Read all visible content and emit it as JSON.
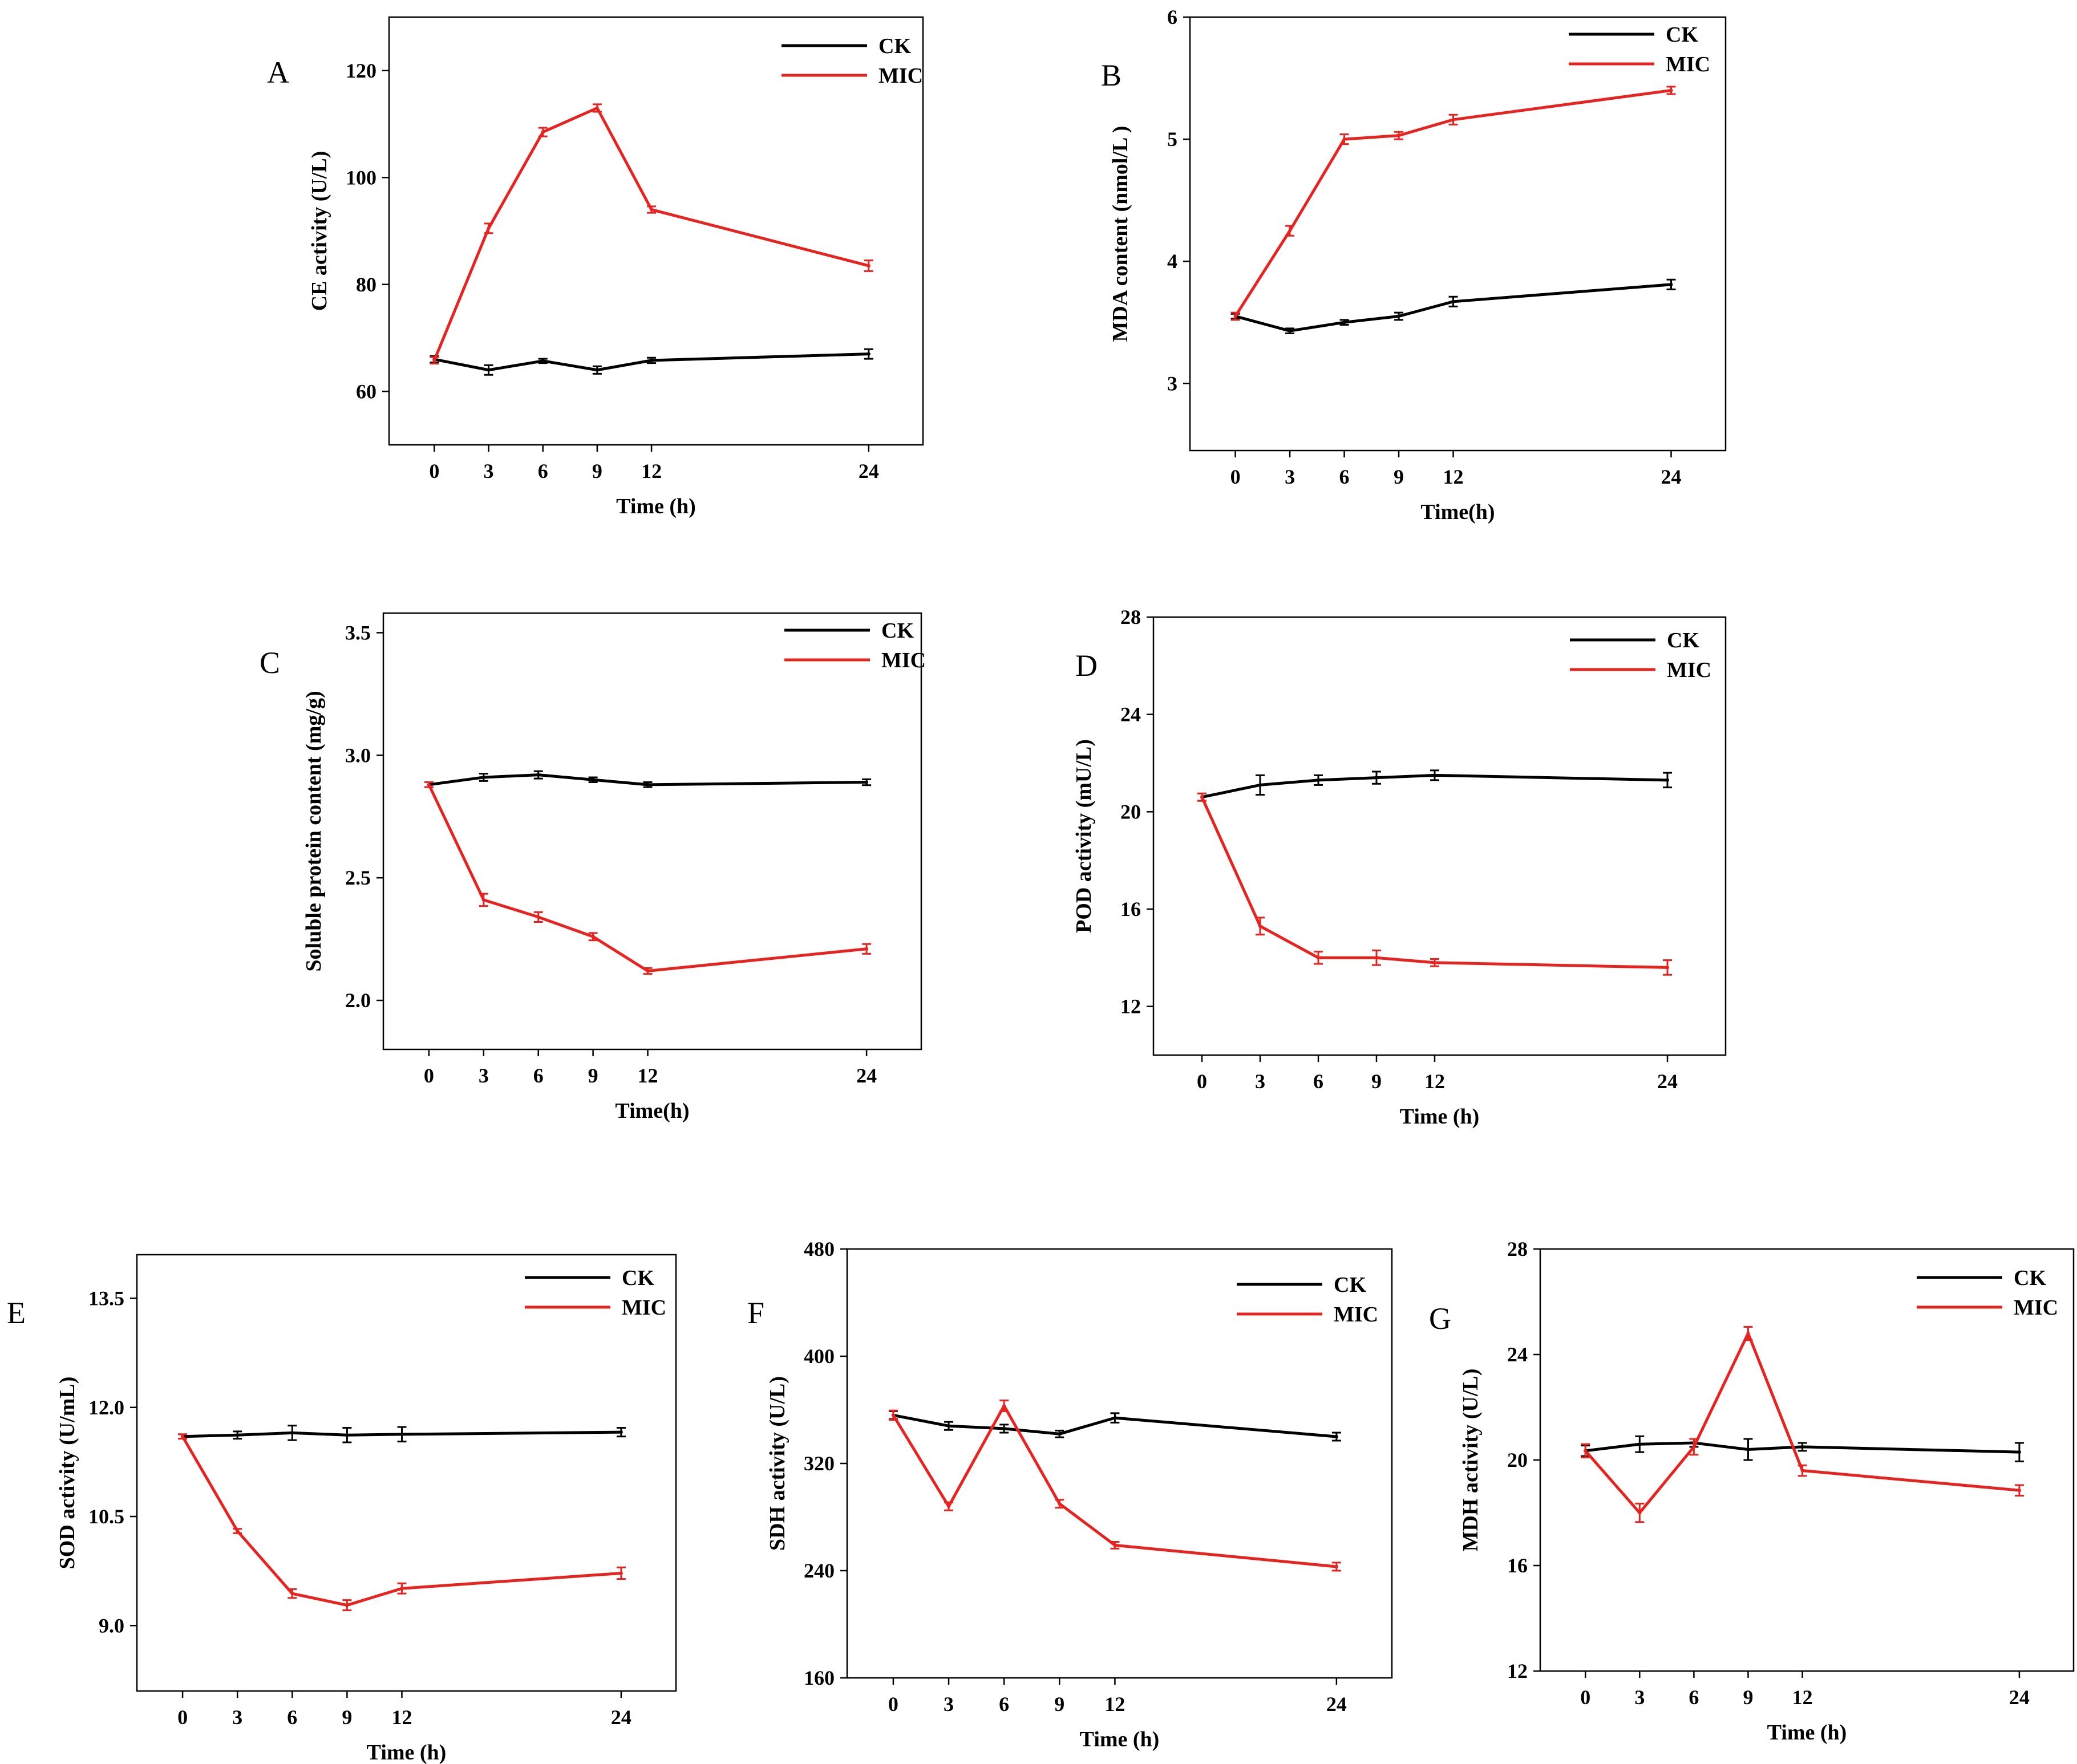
{
  "colors": {
    "CK": "#000000",
    "MIC": "#e8231f"
  },
  "chart_data": [
    {
      "panel": "A",
      "type": "line",
      "xlabel": "Time (h)",
      "ylabel": "CE activity (U/L)",
      "x": [
        0,
        3,
        6,
        9,
        12,
        24
      ],
      "xlim": [
        -2.5,
        27
      ],
      "ylim": [
        50,
        130
      ],
      "yticks": [
        60,
        80,
        100,
        120
      ],
      "series": [
        {
          "name": "CK",
          "values": [
            66,
            64,
            65.7,
            64,
            65.8,
            67
          ],
          "err": [
            0.6,
            0.9,
            0.4,
            0.7,
            0.5,
            0.9
          ]
        },
        {
          "name": "MIC",
          "values": [
            65.8,
            90.5,
            108.5,
            113,
            94,
            83.5
          ],
          "err": [
            0.6,
            0.9,
            0.8,
            0.7,
            0.6,
            1.0
          ]
        }
      ]
    },
    {
      "panel": "B",
      "type": "line",
      "xlabel": "Time(h)",
      "ylabel": "MDA content (nmol/L )",
      "x": [
        0,
        3,
        6,
        9,
        12,
        24
      ],
      "xlim": [
        -2.5,
        27
      ],
      "ylim": [
        2.45,
        6
      ],
      "yticks": [
        3,
        4,
        5,
        6
      ],
      "series": [
        {
          "name": "CK",
          "values": [
            3.55,
            3.43,
            3.5,
            3.55,
            3.67,
            3.81
          ],
          "err": [
            0.02,
            0.02,
            0.02,
            0.03,
            0.04,
            0.04
          ]
        },
        {
          "name": "MIC",
          "values": [
            3.55,
            4.25,
            5.0,
            5.03,
            5.16,
            5.4
          ],
          "err": [
            0.03,
            0.04,
            0.04,
            0.03,
            0.04,
            0.03
          ]
        }
      ]
    },
    {
      "panel": "C",
      "type": "line",
      "xlabel": "Time(h)",
      "ylabel": "Soluble protein content (mg/g)",
      "x": [
        0,
        3,
        6,
        9,
        12,
        24
      ],
      "xlim": [
        -2.5,
        27
      ],
      "ylim": [
        1.8,
        3.58
      ],
      "yticks": [
        2.0,
        2.5,
        3.0,
        3.5
      ],
      "series": [
        {
          "name": "CK",
          "values": [
            2.88,
            2.91,
            2.92,
            2.9,
            2.88,
            2.89
          ],
          "err": [
            0.01,
            0.015,
            0.015,
            0.01,
            0.01,
            0.012
          ]
        },
        {
          "name": "MIC",
          "values": [
            2.88,
            2.41,
            2.34,
            2.26,
            2.12,
            2.21
          ],
          "err": [
            0.01,
            0.025,
            0.02,
            0.015,
            0.012,
            0.02
          ]
        }
      ]
    },
    {
      "panel": "D",
      "type": "line",
      "xlabel": "Time (h)",
      "ylabel": "POD activity (mU/L)",
      "x": [
        0,
        3,
        6,
        9,
        12,
        24
      ],
      "xlim": [
        -2.5,
        27
      ],
      "ylim": [
        10,
        28
      ],
      "yticks": [
        12,
        16,
        20,
        24,
        28
      ],
      "series": [
        {
          "name": "CK",
          "values": [
            20.6,
            21.1,
            21.3,
            21.4,
            21.5,
            21.3
          ],
          "err": [
            0.15,
            0.4,
            0.2,
            0.25,
            0.2,
            0.3
          ]
        },
        {
          "name": "MIC",
          "values": [
            20.6,
            15.3,
            14.0,
            14.0,
            13.8,
            13.6
          ],
          "err": [
            0.15,
            0.35,
            0.25,
            0.3,
            0.15,
            0.3
          ]
        }
      ]
    },
    {
      "panel": "E",
      "type": "line",
      "xlabel": "Time (h)",
      "ylabel": "SOD activity (U/mL)",
      "x": [
        0,
        3,
        6,
        9,
        12,
        24
      ],
      "xlim": [
        -2.5,
        27
      ],
      "ylim": [
        8.1,
        14.1
      ],
      "yticks": [
        9.0,
        10.5,
        12.0,
        13.5
      ],
      "series": [
        {
          "name": "CK",
          "values": [
            11.6,
            11.62,
            11.65,
            11.62,
            11.63,
            11.66
          ],
          "err": [
            0.03,
            0.05,
            0.1,
            0.1,
            0.1,
            0.06
          ]
        },
        {
          "name": "MIC",
          "values": [
            11.6,
            10.3,
            9.44,
            9.28,
            9.51,
            9.72
          ],
          "err": [
            0.03,
            0.03,
            0.06,
            0.07,
            0.07,
            0.08
          ]
        }
      ]
    },
    {
      "panel": "F",
      "type": "line",
      "xlabel": "Time (h)",
      "ylabel": "SDH activity (U/L)",
      "x": [
        0,
        3,
        6,
        9,
        12,
        24
      ],
      "xlim": [
        -2.5,
        27
      ],
      "ylim": [
        160,
        480
      ],
      "yticks": [
        160,
        240,
        320,
        400,
        480
      ],
      "series": [
        {
          "name": "CK",
          "values": [
            356,
            348,
            346,
            342,
            354,
            340
          ],
          "err": [
            3,
            3,
            3,
            2.5,
            3.5,
            3
          ]
        },
        {
          "name": "MIC",
          "values": [
            356,
            288,
            363,
            290,
            259,
            243
          ],
          "err": [
            3.5,
            3,
            4,
            3,
            2.5,
            3
          ]
        }
      ]
    },
    {
      "panel": "G",
      "type": "line",
      "xlabel": "Time (h)",
      "ylabel": "MDH activity (U/L)",
      "x": [
        0,
        3,
        6,
        9,
        12,
        24
      ],
      "xlim": [
        -2.5,
        27
      ],
      "ylim": [
        12,
        28
      ],
      "yticks": [
        12,
        16,
        20,
        24,
        28
      ],
      "series": [
        {
          "name": "CK",
          "values": [
            20.35,
            20.6,
            20.65,
            20.4,
            20.5,
            20.3
          ],
          "err": [
            0.2,
            0.3,
            0.15,
            0.4,
            0.15,
            0.35
          ]
        },
        {
          "name": "MIC",
          "values": [
            20.35,
            18.0,
            20.5,
            24.8,
            19.6,
            18.85
          ],
          "err": [
            0.25,
            0.35,
            0.3,
            0.25,
            0.2,
            0.2
          ]
        }
      ]
    }
  ]
}
